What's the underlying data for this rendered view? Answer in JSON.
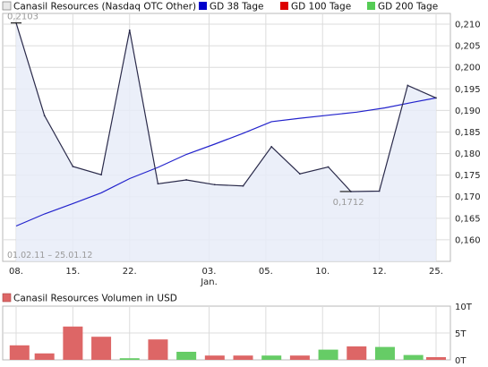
{
  "chart_data": [
    {
      "type": "line",
      "legend": [
        {
          "label": "Canasil Resources (Nasdaq OTC Other)",
          "color": "#e8e8e8"
        },
        {
          "label": "GD 38 Tage",
          "color": "#0000cc"
        },
        {
          "label": "GD 100 Tage",
          "color": "#dd0000"
        },
        {
          "label": "GD 200 Tage",
          "color": "#55cc55"
        }
      ],
      "ylim": [
        0.155,
        0.2125
      ],
      "ytick_labels": [
        "0,210",
        "0,205",
        "0,200",
        "0,195",
        "0,190",
        "0,185",
        "0,180",
        "0,175",
        "0,170",
        "0,165",
        "0,160"
      ],
      "ytick_values": [
        0.21,
        0.205,
        0.2,
        0.195,
        0.19,
        0.185,
        0.18,
        0.175,
        0.17,
        0.165,
        0.16
      ],
      "xtick_labels": [
        "08.",
        "15.",
        "22.",
        "03.",
        "05.",
        "10.",
        "12.",
        "25."
      ],
      "xtick_index": [
        0,
        5,
        10,
        17,
        22,
        27,
        32,
        37
      ],
      "x_sublabel": "Jan.",
      "x_sublabel_index": 17,
      "date_range": "01.02.11 – 25.01.12",
      "annotations": [
        {
          "text": "0,2103",
          "index": 0,
          "value": 0.2103
        },
        {
          "text": "0,1712",
          "index": 29,
          "value": 0.1712
        }
      ],
      "series": [
        {
          "name": "Canasil Resources (Nasdaq OTC Other)",
          "color": "#2a2a4a",
          "points": [
            [
              0,
              0.2103
            ],
            [
              2.5,
              0.1888
            ],
            [
              5,
              0.177
            ],
            [
              7.5,
              0.1751
            ],
            [
              10,
              0.2086
            ],
            [
              12.5,
              0.173
            ],
            [
              15,
              0.1739
            ],
            [
              17.5,
              0.1728
            ],
            [
              20,
              0.1725
            ],
            [
              22.5,
              0.1816
            ],
            [
              25,
              0.1753
            ],
            [
              27.5,
              0.1769
            ],
            [
              29.5,
              0.1712
            ],
            [
              32,
              0.1713
            ],
            [
              34.5,
              0.1958
            ],
            [
              37,
              0.1929
            ]
          ]
        },
        {
          "name": "GD 38 Tage",
          "color": "#2222cc",
          "points": [
            [
              0,
              0.1632
            ],
            [
              2.5,
              0.166
            ],
            [
              5,
              0.1684
            ],
            [
              7.5,
              0.1709
            ],
            [
              10,
              0.1742
            ],
            [
              12.5,
              0.1768
            ],
            [
              15,
              0.1798
            ],
            [
              17.5,
              0.1822
            ],
            [
              20,
              0.1847
            ],
            [
              22.5,
              0.1874
            ],
            [
              25,
              0.1882
            ],
            [
              27.5,
              0.1889
            ],
            [
              30,
              0.1896
            ],
            [
              32.5,
              0.1906
            ],
            [
              35,
              0.1919
            ],
            [
              37,
              0.1929
            ]
          ]
        }
      ]
    },
    {
      "type": "bar",
      "title": "Canasil Resources Volumen in USD",
      "ytick_labels": [
        "10T",
        "5T",
        "0T"
      ],
      "ytick_values": [
        10,
        5,
        0
      ],
      "ylim": [
        0,
        10
      ],
      "colors": {
        "down": "#dd6666",
        "up": "#66cc66"
      },
      "bars": [
        {
          "index": 0.3,
          "value": 2.7,
          "dir": "down"
        },
        {
          "index": 2.5,
          "value": 1.2,
          "dir": "down"
        },
        {
          "index": 5,
          "value": 6.2,
          "dir": "down"
        },
        {
          "index": 7.5,
          "value": 4.3,
          "dir": "down"
        },
        {
          "index": 10,
          "value": 0.3,
          "dir": "up"
        },
        {
          "index": 12.5,
          "value": 3.8,
          "dir": "down"
        },
        {
          "index": 15,
          "value": 1.5,
          "dir": "up"
        },
        {
          "index": 17.5,
          "value": 0.8,
          "dir": "down"
        },
        {
          "index": 20,
          "value": 0.8,
          "dir": "down"
        },
        {
          "index": 22.5,
          "value": 0.8,
          "dir": "up"
        },
        {
          "index": 25,
          "value": 0.8,
          "dir": "down"
        },
        {
          "index": 27.5,
          "value": 1.9,
          "dir": "up"
        },
        {
          "index": 30,
          "value": 2.5,
          "dir": "down"
        },
        {
          "index": 32.5,
          "value": 2.4,
          "dir": "up"
        },
        {
          "index": 35,
          "value": 0.9,
          "dir": "up"
        },
        {
          "index": 37,
          "value": 0.5,
          "dir": "down"
        }
      ]
    }
  ]
}
